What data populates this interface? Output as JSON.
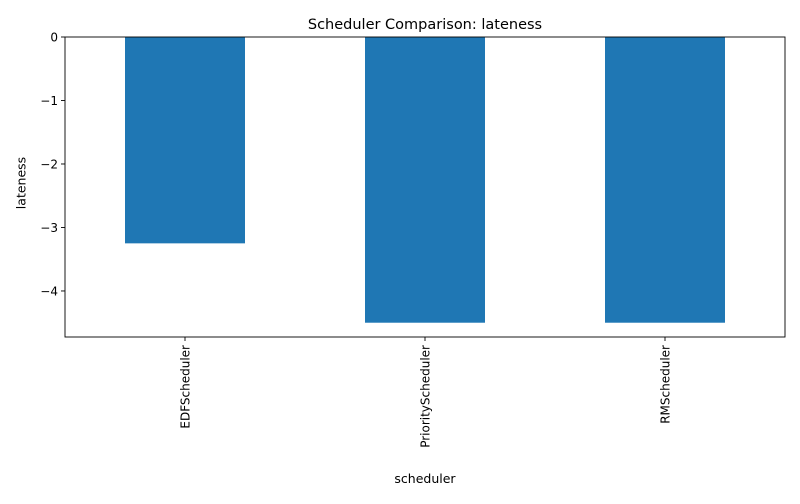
{
  "chart_data": {
    "type": "bar",
    "title": "Scheduler Comparison: lateness",
    "xlabel": "scheduler",
    "ylabel": "lateness",
    "categories": [
      "EDFScheduler",
      "PriorityScheduler",
      "RMScheduler"
    ],
    "values": [
      -3.25,
      -4.5,
      -4.5
    ],
    "ylim": [
      -4.725,
      0
    ],
    "yticks": [
      0,
      -1,
      -2,
      -3,
      -4
    ],
    "ytick_labels": [
      "0",
      "−1",
      "−2",
      "−3",
      "−4"
    ],
    "bar_color": "#1f77b4",
    "grid": false,
    "legend": "none"
  }
}
